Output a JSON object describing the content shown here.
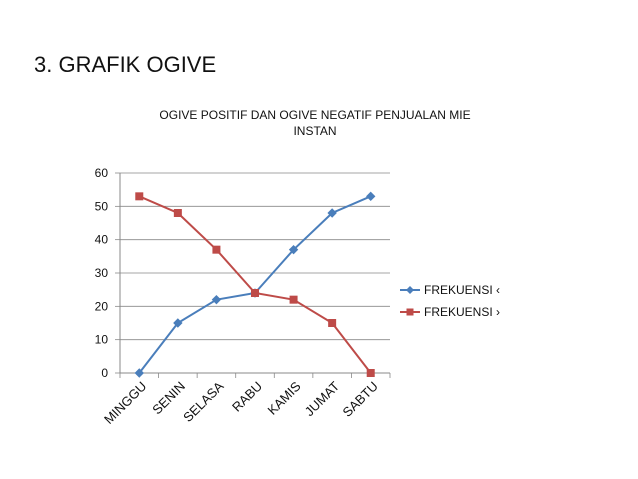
{
  "slide": {
    "title": "3. GRAFIK OGIVE"
  },
  "chart_data": {
    "type": "line",
    "title_lines": [
      "OGIVE POSITIF DAN OGIVE NEGATIF PENJUALAN MIE",
      "INSTAN"
    ],
    "categories": [
      "MINGGU",
      "SENIN",
      "SELASA",
      "RABU",
      "KAMIS",
      "JUMAT",
      "SABTU"
    ],
    "series": [
      {
        "name": "FREKUENSI ‹",
        "values": [
          0,
          15,
          22,
          24,
          37,
          48,
          53
        ],
        "color": "#4a7ebb",
        "marker": "diamond"
      },
      {
        "name": "FREKUENSI ›",
        "values": [
          53,
          48,
          37,
          24,
          22,
          15,
          0
        ],
        "color": "#be4b48",
        "marker": "square"
      }
    ],
    "ylim": [
      0,
      60
    ],
    "yticks": [
      0,
      10,
      20,
      30,
      40,
      50,
      60
    ],
    "grid": true,
    "legend_position": "right"
  }
}
